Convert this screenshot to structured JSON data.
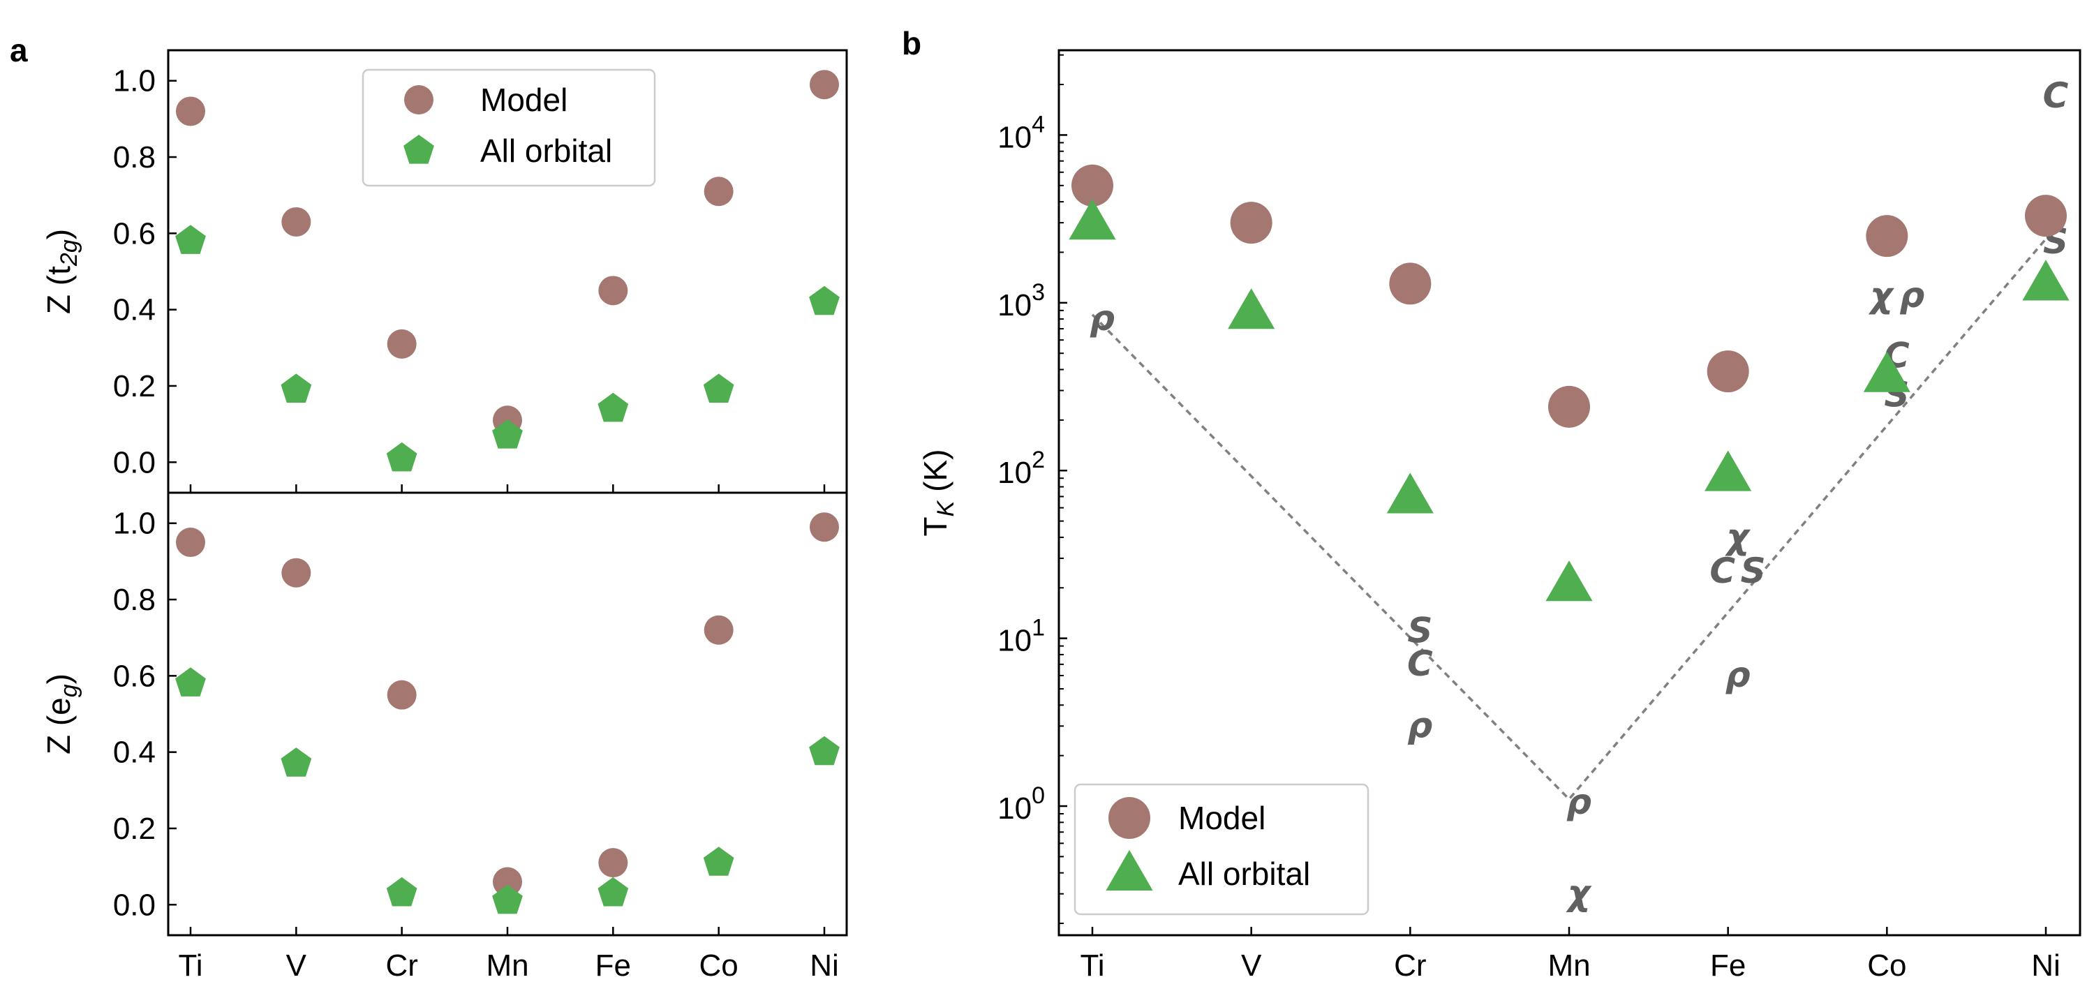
{
  "panel_labels": {
    "a": "a",
    "b": "b"
  },
  "chart_data": [
    {
      "id": "a-top",
      "type": "scatter",
      "categories": [
        "Ti",
        "V",
        "Cr",
        "Mn",
        "Fe",
        "Co",
        "Ni"
      ],
      "ylabel": "Z (t",
      "ylabel_sub": "2g",
      "ylabel_close": ")",
      "ylim": [
        -0.08,
        1.08
      ],
      "yticks": [
        0.0,
        0.2,
        0.4,
        0.6,
        0.8,
        1.0
      ],
      "yticklabels": [
        "0.0",
        "0.2",
        "0.4",
        "0.6",
        "0.8",
        "1.0"
      ],
      "legend": {
        "position": "upper-center",
        "entries": [
          "Model",
          "All orbital"
        ]
      },
      "series": [
        {
          "name": "Model",
          "marker": "circle",
          "color": "#a47871",
          "values": [
            0.92,
            0.63,
            0.31,
            0.11,
            0.45,
            0.71,
            0.99
          ]
        },
        {
          "name": "All orbital",
          "marker": "pentagon",
          "color": "#4fae4f",
          "values": [
            0.58,
            0.19,
            0.01,
            0.07,
            0.14,
            0.19,
            0.42
          ]
        }
      ]
    },
    {
      "id": "a-bottom",
      "type": "scatter",
      "categories": [
        "Ti",
        "V",
        "Cr",
        "Mn",
        "Fe",
        "Co",
        "Ni"
      ],
      "ylabel": "Z (e",
      "ylabel_sub": "g",
      "ylabel_close": ")",
      "ylim": [
        -0.08,
        1.08
      ],
      "yticks": [
        0.0,
        0.2,
        0.4,
        0.6,
        0.8,
        1.0
      ],
      "yticklabels": [
        "0.0",
        "0.2",
        "0.4",
        "0.6",
        "0.8",
        "1.0"
      ],
      "series": [
        {
          "name": "Model",
          "marker": "circle",
          "color": "#a47871",
          "values": [
            0.95,
            0.87,
            0.55,
            0.06,
            0.11,
            0.72,
            0.99
          ]
        },
        {
          "name": "All orbital",
          "marker": "pentagon",
          "color": "#4fae4f",
          "values": [
            0.58,
            0.37,
            0.03,
            0.01,
            0.03,
            0.11,
            0.4
          ]
        }
      ]
    },
    {
      "id": "b",
      "type": "scatter",
      "yscale": "log",
      "categories": [
        "Ti",
        "V",
        "Cr",
        "Mn",
        "Fe",
        "Co",
        "Ni"
      ],
      "ylabel": "T",
      "ylabel_sub": "K",
      "ylabel_rest": " (K)",
      "ylim": [
        0.17,
        32000
      ],
      "yticks": [
        1,
        10,
        100,
        1000,
        10000
      ],
      "yticklabels": [
        {
          "base": "10",
          "exp": "0"
        },
        {
          "base": "10",
          "exp": "1"
        },
        {
          "base": "10",
          "exp": "2"
        },
        {
          "base": "10",
          "exp": "3"
        },
        {
          "base": "10",
          "exp": "4"
        }
      ],
      "legend": {
        "position": "lower-left",
        "entries": [
          "Model",
          "All orbital"
        ]
      },
      "series": [
        {
          "name": "Model",
          "marker": "circle",
          "color": "#a47871",
          "values": [
            5000,
            3000,
            1300,
            240,
            390,
            2500,
            3300
          ]
        },
        {
          "name": "All orbital",
          "marker": "triangle",
          "color": "#4fae4f",
          "values": [
            3000,
            880,
            70,
            21,
            95,
            370,
            1300
          ]
        }
      ],
      "guide_line": {
        "style": "dashed",
        "color": "#808080",
        "x": [
          "Ti",
          "Mn",
          "Ni"
        ],
        "y": [
          850,
          1.1,
          2400
        ]
      },
      "experimental_labels": [
        {
          "text": "ρ",
          "x": "Ti",
          "y": 800
        },
        {
          "text": "S",
          "x": "Cr",
          "y": 11
        },
        {
          "text": "C",
          "x": "Cr",
          "y": 7
        },
        {
          "text": "ρ",
          "x": "Cr",
          "y": 3
        },
        {
          "text": "ρ",
          "x": "Mn",
          "y": 1.05
        },
        {
          "text": "χ",
          "x": "Mn",
          "y": 0.3
        },
        {
          "text": "χ",
          "x": "Fe",
          "y": 40
        },
        {
          "text": "C",
          "x": "Fe",
          "y": 25
        },
        {
          "text": "S",
          "x": "Fe",
          "y": 25
        },
        {
          "text": "ρ",
          "x": "Fe",
          "y": 6
        },
        {
          "text": "χ",
          "x": "Co",
          "y": 1100
        },
        {
          "text": "ρ",
          "x": "Co",
          "y": 1100
        },
        {
          "text": "C",
          "x": "Co",
          "y": 480
        },
        {
          "text": "S",
          "x": "Co",
          "y": 280
        },
        {
          "text": "S",
          "x": "Ni",
          "y": 2300
        },
        {
          "text": "C",
          "x": "Ni",
          "y": 17000
        }
      ]
    }
  ]
}
